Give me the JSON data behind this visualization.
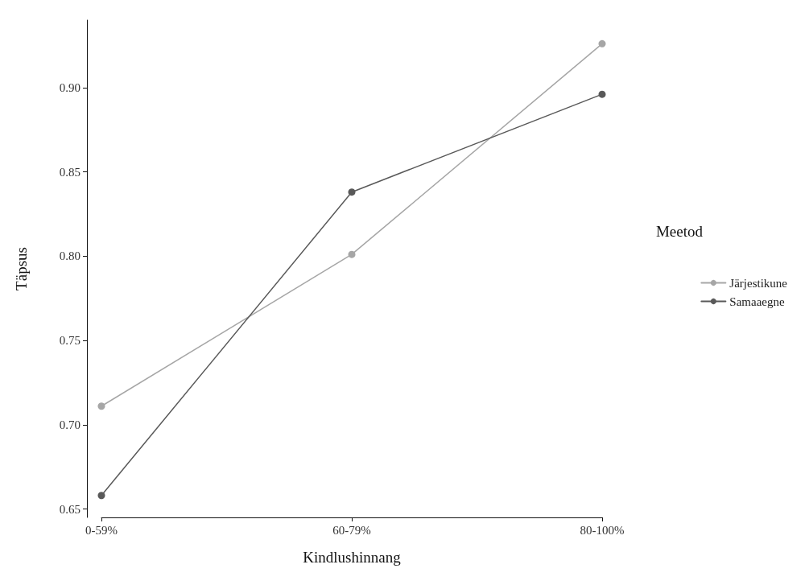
{
  "chart_data": {
    "type": "line",
    "xlabel": "Kindlushinnang",
    "ylabel": "Täpsus",
    "legend_title": "Meetod",
    "categories": [
      "0-59%",
      "60-79%",
      "80-100%"
    ],
    "series": [
      {
        "name": "Järjestikune",
        "color": "#a6a6a6",
        "values": [
          0.711,
          0.801,
          0.926
        ]
      },
      {
        "name": "Samaaegne",
        "color": "#595959",
        "values": [
          0.658,
          0.838,
          0.896
        ]
      }
    ],
    "ylim": [
      0.645,
      0.94
    ],
    "yticks": [
      0.65,
      {
        "value": 0.7,
        "label": "0.70"
      },
      0.75,
      {
        "value": 0.8,
        "label": "0.80"
      },
      0.85,
      {
        "value": 0.9,
        "label": "0.90"
      }
    ],
    "grid": false,
    "legend": "right",
    "marker": "circle",
    "line_style": "solid"
  }
}
